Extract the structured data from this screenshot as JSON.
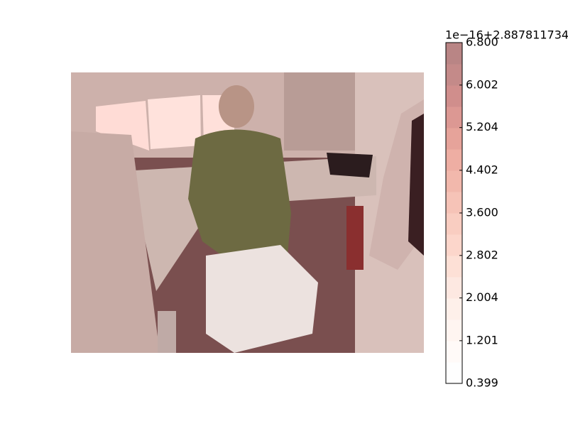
{
  "chart_data": {
    "type": "image",
    "colorbar": {
      "lim": [
        0.399,
        6.8
      ],
      "ticks": [
        0.399,
        1.201,
        2.004,
        2.802,
        {
          "value": 3.6,
          "label": "3.600"
        },
        4.402,
        5.204,
        6.002,
        {
          "value": 6.8,
          "label": "6.800"
        }
      ],
      "offset_text": "1e−16+2.887811734",
      "colors": [
        "#fefefe",
        "#fffaf8",
        "#fff5f1",
        "#fef0ea",
        "#fde8e1",
        "#fde0d6",
        "#fcd6cb",
        "#f9cdc1",
        "#f6c3b7",
        "#f2b8ac",
        "#eeaea3",
        "#e6a39a",
        "#dc9893",
        "#d08e8c",
        "#c48a89",
        "#b98585"
      ]
    }
  }
}
